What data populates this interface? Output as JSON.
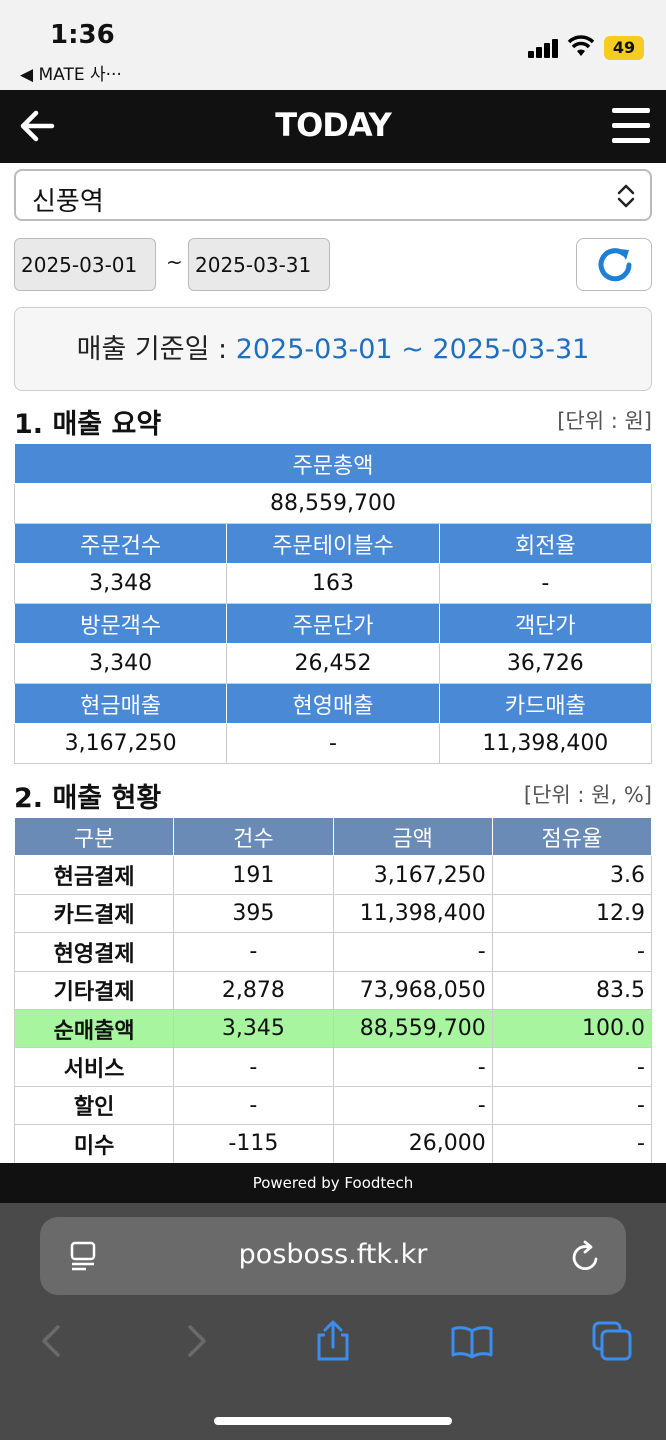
{
  "status": {
    "time": "1:36",
    "back_app": "◀ MATE 사···",
    "battery": "49"
  },
  "header": {
    "title": "TODAY"
  },
  "store": {
    "name": "신풍역"
  },
  "dates": {
    "start": "2025-03-01",
    "tilde": "~",
    "end": "2025-03-31"
  },
  "criteria": {
    "label": "매출 기준일 : ",
    "range": "2025-03-01 ~ 2025-03-31"
  },
  "summary": {
    "title": "1. 매출 요약",
    "unit": "[단위 : 원]",
    "total_header": "주문총액",
    "total_value": "88,559,700",
    "rows": [
      {
        "headers": [
          "주문건수",
          "주문테이블수",
          "회전율"
        ],
        "values": [
          "3,348",
          "163",
          "-"
        ]
      },
      {
        "headers": [
          "방문객수",
          "주문단가",
          "객단가"
        ],
        "values": [
          "3,340",
          "26,452",
          "36,726"
        ]
      },
      {
        "headers": [
          "현금매출",
          "현영매출",
          "카드매출"
        ],
        "values": [
          "3,167,250",
          "-",
          "11,398,400"
        ]
      }
    ]
  },
  "status_table": {
    "title": "2. 매출 현황",
    "unit": "[단위 : 원, %]",
    "headers": [
      "구분",
      "건수",
      "금액",
      "점유율"
    ],
    "rows": [
      {
        "label": "현금결제",
        "count": "191",
        "amount": "3,167,250",
        "share": "3.6"
      },
      {
        "label": "카드결제",
        "count": "395",
        "amount": "11,398,400",
        "share": "12.9"
      },
      {
        "label": "현영결제",
        "count": "-",
        "amount": "-",
        "share": "-"
      },
      {
        "label": "기타결제",
        "count": "2,878",
        "amount": "73,968,050",
        "share": "83.5"
      },
      {
        "label": "순매출액",
        "count": "3,345",
        "amount": "88,559,700",
        "share": "100.0"
      },
      {
        "label": "서비스",
        "count": "-",
        "amount": "-",
        "share": "-"
      },
      {
        "label": "할인",
        "count": "-",
        "amount": "-",
        "share": "-"
      },
      {
        "label": "미수",
        "count": "-115",
        "amount": "26,000",
        "share": "-"
      }
    ]
  },
  "footer": {
    "powered": "Powered by Foodtech"
  },
  "browser": {
    "url": "posboss.ftk.kr"
  },
  "colors": {
    "summary_header": "#4a89d6",
    "status_header": "#6b8bb7",
    "net_row": "#a8f5a0",
    "link_blue": "#1e6fbf"
  }
}
